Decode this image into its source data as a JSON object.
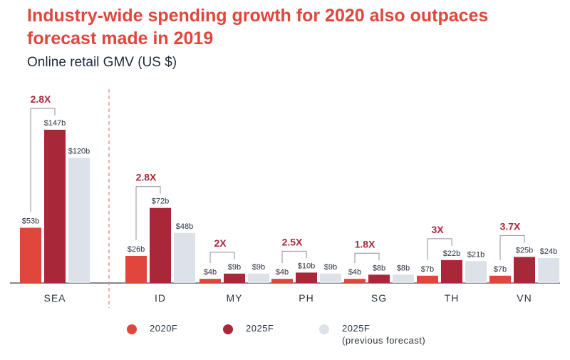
{
  "title": "Industry-wide spending growth for 2020 also outpaces forecast made in 2019",
  "subtitle": "Online retail GMV (US $)",
  "colors": {
    "title": "#e0463c",
    "series_2020F": "#e0463c",
    "series_2025F": "#a8283a",
    "series_prev": "#dde1e8",
    "multiplier": "#a8283a",
    "axis": "#3a4450",
    "divider": "#d98080"
  },
  "legend": [
    {
      "label": "2020F",
      "color": "#e0463c"
    },
    {
      "label": "2025F",
      "color": "#a8283a"
    },
    {
      "label": "2025F\n(previous forecast)",
      "color": "#dde1e8"
    }
  ],
  "chart_data": {
    "type": "bar",
    "categories": [
      "SEA",
      "ID",
      "MY",
      "PH",
      "SG",
      "TH",
      "VN"
    ],
    "series": [
      {
        "name": "2020F",
        "values": [
          53,
          26,
          4,
          4,
          4,
          7,
          7
        ],
        "labels": [
          "$53b",
          "$26b",
          "$4b",
          "$4b",
          "$4b",
          "$7b",
          "$7b"
        ]
      },
      {
        "name": "2025F",
        "values": [
          147,
          72,
          9,
          10,
          8,
          22,
          25
        ],
        "labels": [
          "$147b",
          "$72b",
          "$9b",
          "$10b",
          "$8b",
          "$22b",
          "$25b"
        ]
      },
      {
        "name": "2025F (previous forecast)",
        "values": [
          120,
          48,
          9,
          9,
          8,
          21,
          24
        ],
        "labels": [
          "$120b",
          "$48b",
          "$9b",
          "$9b",
          "$8b",
          "$21b",
          "$24b"
        ]
      }
    ],
    "multipliers": [
      "2.8X",
      "2.8X",
      "2X",
      "2.5X",
      "1.8X",
      "3X",
      "3.7X"
    ],
    "unit": "US $ billions",
    "grid": false,
    "legend_position": "bottom"
  }
}
